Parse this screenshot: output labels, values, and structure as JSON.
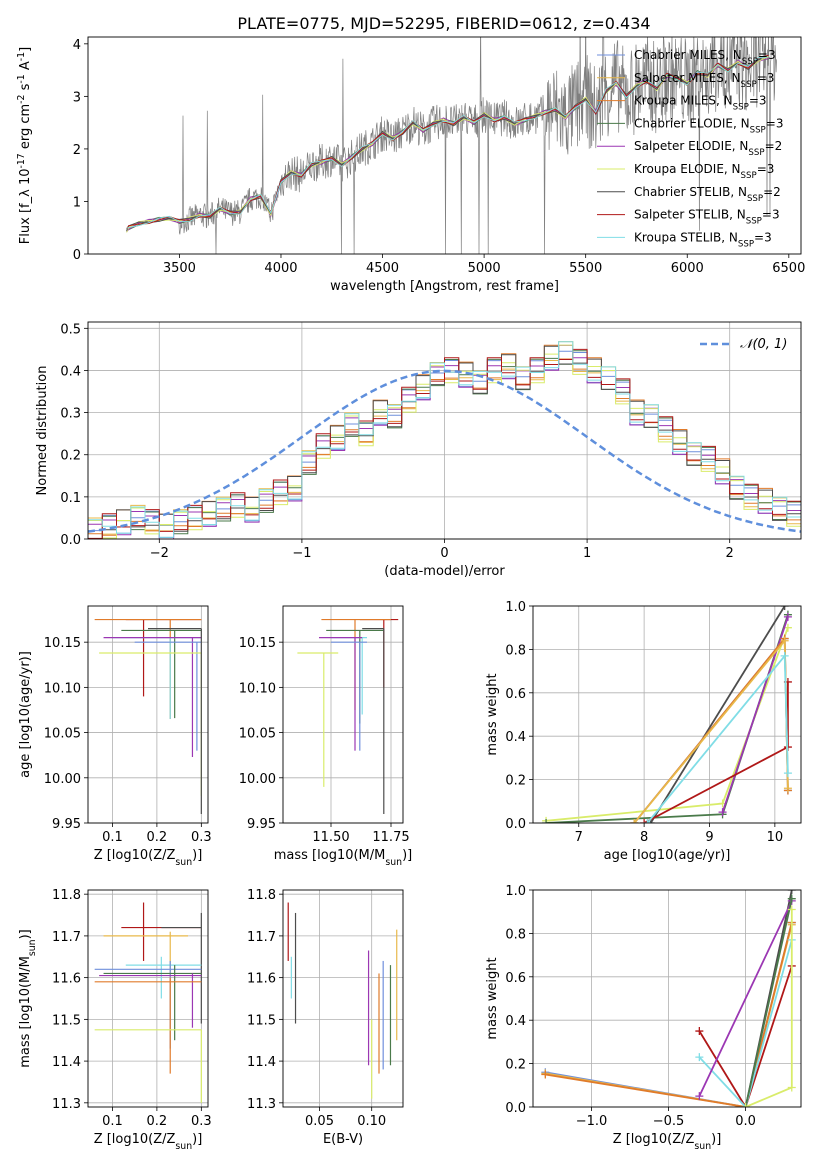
{
  "figure_title": "PLATE=0775, MJD=52295, FIBERID=0612, z=0.434",
  "colors": {
    "chabrier_miles": "#6f8fdc",
    "salpeter_miles": "#e8b84a",
    "kroupa_miles": "#e07b2b",
    "chabrier_elodie": "#4a7a4a",
    "salpeter_elodie": "#9b37b3",
    "kroupa_elodie": "#d9ec6a",
    "chabrier_stelib": "#4d4d4d",
    "salpeter_stelib": "#b01818",
    "kroupa_stelib": "#80dde6",
    "data": "#7f7f7f",
    "normal": "#5f8fdc"
  },
  "chart_data": [
    {
      "id": "spectrum",
      "type": "line",
      "xlabel": "wavelength [Angstrom, rest frame]",
      "ylabel": "Flux [f_λ 10^-17 erg cm^-2 s^-1 A^-1]",
      "xlim": [
        3050,
        6560
      ],
      "ylim": [
        0,
        4.13
      ],
      "xticks": [
        3500,
        4000,
        4500,
        5000,
        5500,
        6000,
        6500
      ],
      "yticks": [
        0,
        1,
        2,
        3,
        4
      ],
      "grid": false,
      "legend_position": "upper-right",
      "legend": [
        {
          "name": "Chabrier MILES, N_SSP=3",
          "color_key": "chabrier_miles"
        },
        {
          "name": "Salpeter MILES, N_SSP=3",
          "color_key": "salpeter_miles"
        },
        {
          "name": "Kroupa MILES, N_SSP=3",
          "color_key": "kroupa_miles"
        },
        {
          "name": "Chabrier ELODIE, N_SSP=3",
          "color_key": "chabrier_elodie"
        },
        {
          "name": "Salpeter ELODIE, N_SSP=2",
          "color_key": "salpeter_elodie"
        },
        {
          "name": "Kroupa ELODIE, N_SSP=3",
          "color_key": "kroupa_elodie"
        },
        {
          "name": "Chabrier STELIB, N_SSP=2",
          "color_key": "chabrier_stelib"
        },
        {
          "name": "Salpeter STELIB, N_SSP=3",
          "color_key": "salpeter_stelib"
        },
        {
          "name": "Kroupa STELIB, N_SSP=3",
          "color_key": "kroupa_stelib"
        }
      ],
      "model_x": [
        3240,
        3250,
        3300,
        3350,
        3400,
        3450,
        3500,
        3550,
        3600,
        3650,
        3700,
        3750,
        3800,
        3850,
        3900,
        3950,
        4000,
        4050,
        4100,
        4150,
        4200,
        4250,
        4300,
        4350,
        4400,
        4450,
        4500,
        4550,
        4600,
        4650,
        4700,
        4750,
        4800,
        4850,
        4900,
        4950,
        5000,
        5050,
        5100,
        5150,
        5200,
        5250,
        5300,
        5350,
        5400,
        5450,
        5500,
        5550,
        5600,
        5650,
        5700,
        5750,
        5800,
        5850,
        5900,
        5950,
        6000,
        6050,
        6100,
        6150,
        6200,
        6250,
        6300,
        6350,
        6400
      ],
      "model_y": [
        0.45,
        0.5,
        0.58,
        0.62,
        0.66,
        0.68,
        0.62,
        0.66,
        0.74,
        0.72,
        0.86,
        0.78,
        0.8,
        1.05,
        1.1,
        0.76,
        1.38,
        1.55,
        1.5,
        1.7,
        1.75,
        1.82,
        1.7,
        1.85,
        2.0,
        2.1,
        2.3,
        2.2,
        2.32,
        2.5,
        2.35,
        2.48,
        2.55,
        2.48,
        2.6,
        2.5,
        2.65,
        2.55,
        2.6,
        2.48,
        2.55,
        2.62,
        2.7,
        2.75,
        2.6,
        2.8,
        2.95,
        2.7,
        3.1,
        3.25,
        3.0,
        3.2,
        3.3,
        3.15,
        3.4,
        3.35,
        3.25,
        3.45,
        3.4,
        3.6,
        3.5,
        3.65,
        3.55,
        3.7,
        3.75
      ]
    },
    {
      "id": "residuals",
      "type": "histogram",
      "xlabel": "(data-model)/error",
      "ylabel": "Normed distribution",
      "xlim": [
        -2.5,
        2.5
      ],
      "ylim": [
        0,
        0.515
      ],
      "xticks": [
        -2,
        -1,
        0,
        1,
        2
      ],
      "yticks": [
        0.0,
        0.1,
        0.2,
        0.3,
        0.4,
        0.5
      ],
      "grid": true,
      "legend_position": "upper-right",
      "legend": [
        {
          "name": "𝒩(0, 1)",
          "color_key": "normal"
        }
      ],
      "bin_width": 0.1,
      "base_heights": [
        0.02,
        0.03,
        0.04,
        0.05,
        0.04,
        0.03,
        0.04,
        0.05,
        0.06,
        0.07,
        0.08,
        0.07,
        0.09,
        0.11,
        0.12,
        0.18,
        0.22,
        0.24,
        0.27,
        0.25,
        0.3,
        0.29,
        0.33,
        0.36,
        0.39,
        0.4,
        0.39,
        0.37,
        0.4,
        0.41,
        0.38,
        0.4,
        0.43,
        0.44,
        0.42,
        0.4,
        0.38,
        0.35,
        0.3,
        0.29,
        0.26,
        0.23,
        0.2,
        0.19,
        0.16,
        0.12,
        0.1,
        0.09,
        0.07,
        0.06
      ]
    },
    {
      "id": "age_vs_Z",
      "type": "errorbar",
      "xlabel": "Z [log10(Z/Z_sun)]",
      "ylabel": "age  [log10(age/yr)]",
      "xlim": [
        0.045,
        0.315
      ],
      "ylim": [
        9.95,
        10.19
      ],
      "xticks": [
        0.1,
        0.2,
        0.3
      ],
      "yticks": [
        9.95,
        10.0,
        10.05,
        10.1,
        10.15
      ],
      "grid": true,
      "points": [
        {
          "c": "salpeter_stelib",
          "x": 0.17,
          "y": 10.175,
          "xerr": [
            0.13,
            0.3
          ],
          "yerr": [
            10.09,
            10.175
          ]
        },
        {
          "c": "kroupa_miles",
          "x": 0.23,
          "y": 10.175,
          "xerr": [
            0.06,
            0.3
          ],
          "yerr": [
            10.065,
            10.175
          ]
        },
        {
          "c": "chabrier_elodie",
          "x": 0.24,
          "y": 10.163,
          "xerr": [
            0.12,
            0.3
          ],
          "yerr": [
            10.066,
            10.163
          ]
        },
        {
          "c": "kroupa_stelib",
          "x": 0.23,
          "y": 10.155,
          "xerr": [
            0.1,
            0.3
          ],
          "yerr": [
            10.065,
            10.155
          ]
        },
        {
          "c": "salpeter_elodie",
          "x": 0.28,
          "y": 10.155,
          "xerr": [
            0.08,
            0.3
          ],
          "yerr": [
            10.023,
            10.155
          ]
        },
        {
          "c": "chabrier_miles",
          "x": 0.29,
          "y": 10.15,
          "xerr": [
            0.15,
            0.3
          ],
          "yerr": [
            10.03,
            10.15
          ]
        },
        {
          "c": "kroupa_elodie",
          "x": 0.3,
          "y": 10.138,
          "xerr": [
            0.07,
            0.3
          ],
          "yerr": [
            9.98,
            10.138
          ]
        },
        {
          "c": "chabrier_stelib",
          "x": 0.3,
          "y": 10.165,
          "xerr": [
            0.18,
            0.3
          ],
          "yerr": [
            9.96,
            10.165
          ]
        }
      ]
    },
    {
      "id": "age_vs_mass",
      "type": "errorbar",
      "xlabel": "mass [log10(M/M_sun)]",
      "ylabel": "",
      "xlim": [
        11.3,
        11.8
      ],
      "ylim": [
        9.95,
        10.19
      ],
      "xticks": [
        11.5,
        11.75
      ],
      "yticks": [
        9.95,
        10.0,
        10.05,
        10.1,
        10.15
      ],
      "grid": true,
      "points": [
        {
          "c": "salpeter_stelib",
          "x": 11.72,
          "y": 10.175,
          "xerr": [
            11.62,
            11.78
          ],
          "yerr": [
            10.1,
            10.175
          ]
        },
        {
          "c": "kroupa_miles",
          "x": 11.6,
          "y": 10.175,
          "xerr": [
            11.46,
            11.75
          ],
          "yerr": [
            10.075,
            10.175
          ]
        },
        {
          "c": "chabrier_elodie",
          "x": 11.62,
          "y": 10.163,
          "xerr": [
            11.48,
            11.72
          ],
          "yerr": [
            10.06,
            10.163
          ]
        },
        {
          "c": "kroupa_stelib",
          "x": 11.63,
          "y": 10.155,
          "xerr": [
            11.5,
            11.65
          ],
          "yerr": [
            10.07,
            10.155
          ]
        },
        {
          "c": "salpeter_elodie",
          "x": 11.6,
          "y": 10.155,
          "xerr": [
            11.45,
            11.63
          ],
          "yerr": [
            10.03,
            10.155
          ]
        },
        {
          "c": "chabrier_miles",
          "x": 11.62,
          "y": 10.15,
          "xerr": [
            11.5,
            11.65
          ],
          "yerr": [
            10.03,
            10.15
          ]
        },
        {
          "c": "kroupa_elodie",
          "x": 11.47,
          "y": 10.138,
          "xerr": [
            11.36,
            11.53
          ],
          "yerr": [
            9.99,
            10.138
          ]
        },
        {
          "c": "chabrier_stelib",
          "x": 11.72,
          "y": 10.165,
          "xerr": [
            11.63,
            11.72
          ],
          "yerr": [
            9.96,
            10.165
          ]
        }
      ]
    },
    {
      "id": "massweight_vs_age",
      "type": "line",
      "xlabel": "age  [log10(age/yr)]",
      "ylabel": "mass weight",
      "xlim": [
        6.3,
        10.4
      ],
      "ylim": [
        0,
        1
      ],
      "xticks": [
        7,
        8,
        9,
        10
      ],
      "yticks": [
        0.0,
        0.2,
        0.4,
        0.6,
        0.8,
        1.0
      ],
      "grid": true,
      "series": [
        {
          "c": "kroupa_elodie",
          "x": [
            6.5,
            9.2,
            10.2
          ],
          "y": [
            0.01,
            0.09,
            0.9
          ]
        },
        {
          "c": "chabrier_elodie",
          "x": [
            6.5,
            9.2,
            10.2
          ],
          "y": [
            0.0,
            0.04,
            0.96
          ]
        },
        {
          "c": "salpeter_elodie",
          "x": [
            9.2,
            10.2
          ],
          "y": [
            0.05,
            0.95
          ]
        },
        {
          "c": "chabrier_stelib",
          "x": [
            8.1,
            10.15
          ],
          "y": [
            0.0,
            1.0
          ]
        },
        {
          "c": "salpeter_stelib",
          "x": [
            8.0,
            10.2,
            10.2
          ],
          "y": [
            0.0,
            0.35,
            0.65
          ]
        },
        {
          "c": "chabrier_miles",
          "x": [
            7.85,
            10.15,
            10.2
          ],
          "y": [
            0.0,
            0.85,
            0.15
          ]
        },
        {
          "c": "kroupa_miles",
          "x": [
            7.85,
            10.15,
            10.2
          ],
          "y": [
            0.0,
            0.85,
            0.15
          ]
        },
        {
          "c": "salpeter_miles",
          "x": [
            7.85,
            10.15,
            10.2
          ],
          "y": [
            0.0,
            0.84,
            0.16
          ]
        },
        {
          "c": "kroupa_stelib",
          "x": [
            8.05,
            10.15,
            10.2
          ],
          "y": [
            0.0,
            0.77,
            0.23
          ]
        }
      ]
    },
    {
      "id": "mass_vs_Z",
      "type": "errorbar",
      "xlabel": "Z [log10(Z/Z_sun)]",
      "ylabel": "mass [log10(M/M_sun)]",
      "xlim": [
        0.045,
        0.315
      ],
      "ylim": [
        11.29,
        11.81
      ],
      "xticks": [
        0.1,
        0.2,
        0.3
      ],
      "yticks": [
        11.3,
        11.4,
        11.5,
        11.6,
        11.7,
        11.8
      ],
      "grid": true,
      "points": [
        {
          "c": "salpeter_stelib",
          "x": 0.17,
          "y": 11.72,
          "xerr": [
            0.12,
            0.3
          ],
          "yerr": [
            11.64,
            11.78
          ]
        },
        {
          "c": "chabrier_stelib",
          "x": 0.3,
          "y": 11.72,
          "xerr": [
            0.21,
            0.3
          ],
          "yerr": [
            11.49,
            11.755
          ]
        },
        {
          "c": "salpeter_miles",
          "x": 0.23,
          "y": 11.7,
          "xerr": [
            0.08,
            0.27
          ],
          "yerr": [
            11.6,
            11.71
          ]
        },
        {
          "c": "kroupa_stelib",
          "x": 0.21,
          "y": 11.63,
          "xerr": [
            0.13,
            0.3
          ],
          "yerr": [
            11.55,
            11.65
          ]
        },
        {
          "c": "chabrier_miles",
          "x": 0.23,
          "y": 11.62,
          "xerr": [
            0.06,
            0.3
          ],
          "yerr": [
            11.43,
            11.64
          ]
        },
        {
          "c": "chabrier_elodie",
          "x": 0.24,
          "y": 11.61,
          "xerr": [
            0.08,
            0.3
          ],
          "yerr": [
            11.45,
            11.63
          ]
        },
        {
          "c": "salpeter_elodie",
          "x": 0.28,
          "y": 11.605,
          "xerr": [
            0.07,
            0.3
          ],
          "yerr": [
            11.48,
            11.61
          ]
        },
        {
          "c": "kroupa_miles",
          "x": 0.23,
          "y": 11.59,
          "xerr": [
            0.06,
            0.3
          ],
          "yerr": [
            11.37,
            11.6
          ]
        },
        {
          "c": "kroupa_elodie",
          "x": 0.3,
          "y": 11.475,
          "xerr": [
            0.06,
            0.3
          ],
          "yerr": [
            11.3,
            11.475
          ]
        }
      ]
    },
    {
      "id": "mass_vs_ebv",
      "type": "errorbar",
      "xlabel": "E(B-V)",
      "ylabel": "",
      "xlim": [
        0.015,
        0.13
      ],
      "ylim": [
        11.29,
        11.81
      ],
      "xticks": [
        0.05,
        0.1
      ],
      "yticks": [
        11.3,
        11.4,
        11.5,
        11.6,
        11.7,
        11.8
      ],
      "grid": true,
      "points": [
        {
          "c": "salpeter_stelib",
          "x": 0.02,
          "y": 11.71,
          "yerr": [
            11.64,
            11.78
          ]
        },
        {
          "c": "kroupa_stelib",
          "x": 0.023,
          "y": 11.6,
          "yerr": [
            11.55,
            11.65
          ]
        },
        {
          "c": "chabrier_stelib",
          "x": 0.027,
          "y": 11.6,
          "yerr": [
            11.49,
            11.755
          ]
        },
        {
          "c": "salpeter_elodie",
          "x": 0.097,
          "y": 11.55,
          "yerr": [
            11.39,
            11.665
          ]
        },
        {
          "c": "kroupa_elodie",
          "x": 0.1,
          "y": 11.4,
          "yerr": [
            11.31,
            11.5
          ]
        },
        {
          "c": "kroupa_miles",
          "x": 0.107,
          "y": 11.5,
          "yerr": [
            11.37,
            11.61
          ]
        },
        {
          "c": "chabrier_miles",
          "x": 0.111,
          "y": 11.54,
          "yerr": [
            11.38,
            11.64
          ]
        },
        {
          "c": "chabrier_elodie",
          "x": 0.118,
          "y": 11.52,
          "yerr": [
            11.39,
            11.63
          ]
        },
        {
          "c": "salpeter_miles",
          "x": 0.124,
          "y": 11.58,
          "yerr": [
            11.45,
            11.715
          ]
        }
      ]
    },
    {
      "id": "massweight_vs_Z",
      "type": "line",
      "xlabel": "Z [log10(Z/Z_sun)]",
      "ylabel": "mass weight",
      "xlim": [
        -1.38,
        0.36
      ],
      "ylim": [
        0,
        1
      ],
      "xticks": [
        -1.0,
        -0.5,
        0.0
      ],
      "yticks": [
        0.0,
        0.2,
        0.4,
        0.6,
        0.8,
        1.0
      ],
      "grid": true,
      "series": [
        {
          "c": "chabrier_miles",
          "x": [
            -1.3,
            0.0,
            0.3
          ],
          "y": [
            0.16,
            0.0,
            0.85
          ]
        },
        {
          "c": "salpeter_miles",
          "x": [
            -1.3,
            0.0,
            0.3
          ],
          "y": [
            0.155,
            0.0,
            0.84
          ]
        },
        {
          "c": "kroupa_miles",
          "x": [
            -1.3,
            0.0,
            0.3
          ],
          "y": [
            0.15,
            0.0,
            0.85
          ]
        },
        {
          "c": "chabrier_stelib",
          "x": [
            0.0,
            0.3
          ],
          "y": [
            0.0,
            1.0
          ]
        },
        {
          "c": "salpeter_stelib",
          "x": [
            -0.3,
            0.0,
            0.3
          ],
          "y": [
            0.35,
            0.0,
            0.65
          ]
        },
        {
          "c": "kroupa_stelib",
          "x": [
            -0.3,
            0.0,
            0.3
          ],
          "y": [
            0.23,
            0.0,
            0.77
          ]
        },
        {
          "c": "salpeter_elodie",
          "x": [
            -0.3,
            0.3
          ],
          "y": [
            0.05,
            0.95
          ]
        },
        {
          "c": "chabrier_elodie",
          "x": [
            0.0,
            0.3
          ],
          "y": [
            0.0,
            0.96
          ]
        },
        {
          "c": "kroupa_elodie",
          "x": [
            0.0,
            0.3,
            0.3
          ],
          "y": [
            0.0,
            0.09,
            0.91
          ]
        }
      ]
    }
  ]
}
